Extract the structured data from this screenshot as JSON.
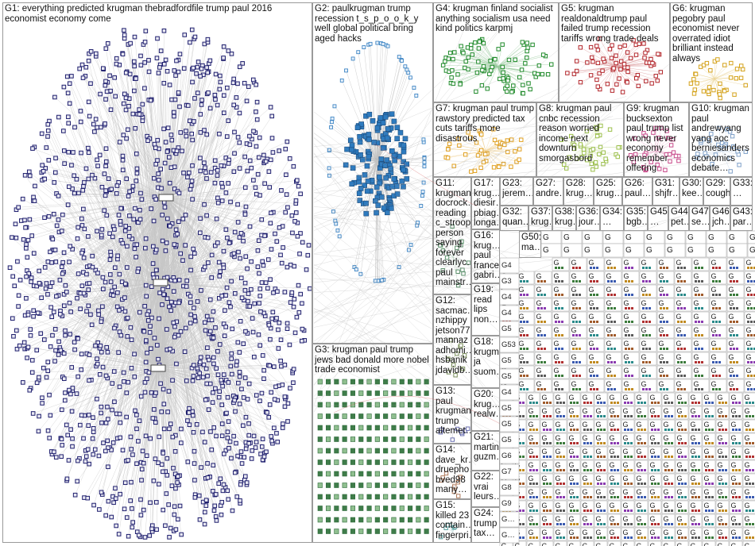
{
  "groups": [
    {
      "id": "G1",
      "label": "G1: everything predicted krugman thebradfordfile trump paul 2016 economist economy come"
    },
    {
      "id": "G2",
      "label": "G2: paulkrugman trump recession t_s_p_o_o_k_y well global political bring aged hacks"
    },
    {
      "id": "G3",
      "label": "G3: krugman paul trump jews bad donald more nobel trade economist"
    },
    {
      "id": "G4",
      "label": "G4: krugman finland socialist anything socialism usa need kind politics karpmj"
    },
    {
      "id": "G5",
      "label": "G5: krugman realdonaldtrump paul failed trump recession tariffs wrong trade deals"
    },
    {
      "id": "G6",
      "label": "G6: krugman pegobry paul economist never overrated idiot brilliant instead always"
    },
    {
      "id": "G7",
      "label": "G7: krugman paul trump rawstory predicted tax cuts tariffs more disastrous"
    },
    {
      "id": "G8",
      "label": "G8: krugman paul cnbc recession reason worried income next downturn smorgasbord"
    },
    {
      "id": "G9",
      "label": "G9: krugman bucksexton paul trump list wrong never economy remember offering"
    },
    {
      "id": "G10",
      "label": "G10: krugman paul andrewyang yang aoc berniesanders economics debate…"
    },
    {
      "id": "G11",
      "label": "G11: krugman docrock… reading c_stroop person saying forever clearlyc… paul mainstr…"
    },
    {
      "id": "G12",
      "label": "G12: sacmac… nzhippy jetson77… mannaz adhomi… hsbanik jdavidb…"
    },
    {
      "id": "G13",
      "label": "G13: paul krugman trump altemet…"
    },
    {
      "id": "G14",
      "label": "G14: dave_kr… druepho… bved98 many…"
    },
    {
      "id": "G15",
      "label": "G15: killed 23 contain… fingerpri…"
    },
    {
      "id": "G16",
      "label": "G16: krug… paul france gabri…"
    },
    {
      "id": "G17",
      "label": "G17: krug… diesir… pbiag… longa…"
    },
    {
      "id": "G18",
      "label": "G18: krugm… ja suom…"
    },
    {
      "id": "G19",
      "label": "G19: read lips non…"
    },
    {
      "id": "G20",
      "label": "G20: krug… realw…"
    },
    {
      "id": "G21",
      "label": "G21: martin guzm…"
    },
    {
      "id": "G22",
      "label": "G22: vrai leurs…"
    },
    {
      "id": "G23",
      "label": "G23: jerem…"
    },
    {
      "id": "G24",
      "label": "G24: trump tax…"
    },
    {
      "id": "G25",
      "label": "G25: krug…"
    },
    {
      "id": "G26",
      "label": "G26: paul…"
    },
    {
      "id": "G27",
      "label": "G27: andre…"
    },
    {
      "id": "G28",
      "label": "G28: krug…"
    },
    {
      "id": "G29",
      "label": "G29: coughtod…"
    },
    {
      "id": "G30",
      "label": "G30: kee…"
    },
    {
      "id": "G31",
      "label": "G31: shjfr…"
    },
    {
      "id": "G32",
      "label": "G32: quan…"
    },
    {
      "id": "G33",
      "label": "G33: …"
    },
    {
      "id": "G34",
      "label": "G34: …"
    },
    {
      "id": "G35",
      "label": "G35: bgb…"
    },
    {
      "id": "G36",
      "label": "G36: jour…"
    },
    {
      "id": "G37",
      "label": "G37: krug…"
    },
    {
      "id": "G38",
      "label": "G38: krug…"
    },
    {
      "id": "G43",
      "label": "G43: par…"
    },
    {
      "id": "G44",
      "label": "G44: pet…"
    },
    {
      "id": "G45",
      "label": "G45: …"
    },
    {
      "id": "G46",
      "label": "G46: jch…"
    },
    {
      "id": "G47",
      "label": "G47: se…"
    },
    {
      "id": "G50",
      "label": "G50: ma…"
    }
  ],
  "small_labels": [
    "G4 arti…",
    "G3 kru…",
    "G4 ke…",
    "G4 no…",
    "G5 kr…",
    "G53 …",
    "G5 es…",
    "G5 alb…",
    "G4 jmi…",
    "G5 kr…",
    "G5 de…",
    "G5 sil…",
    "G6 st…",
    "G7 pa…",
    "G8",
    "G9",
    "G… tru…",
    "G… re…",
    "G… kr…",
    "G… si…"
  ],
  "colors": {
    "G1": "#1f1f6e",
    "G2": "#2e7bbf",
    "G3": "#2e6a3a",
    "G4": "#1f8a2a",
    "G5": "#b3262b",
    "G6": "#d4a21a",
    "G7": "#e0a020",
    "G8": "#9bbf4a",
    "G9": "#c84a8a",
    "G10": "#7fa0c8",
    "edge": "#9a9a9a",
    "red_edge": "#d65c5c",
    "panel_border": "#9a9a9a"
  }
}
